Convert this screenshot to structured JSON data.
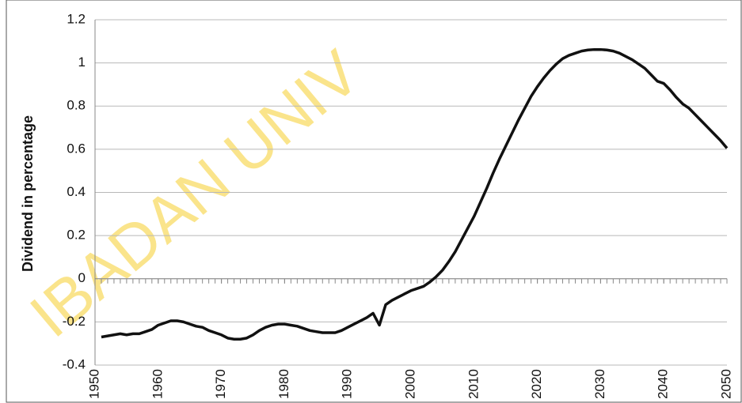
{
  "chart_data": {
    "type": "line",
    "ylabel": "Dividend in percentage",
    "watermark": "IBADAN UNIV",
    "x": [
      1951,
      1952,
      1953,
      1954,
      1955,
      1956,
      1957,
      1958,
      1959,
      1960,
      1961,
      1962,
      1963,
      1964,
      1965,
      1966,
      1967,
      1968,
      1969,
      1970,
      1971,
      1972,
      1973,
      1974,
      1975,
      1976,
      1977,
      1978,
      1979,
      1980,
      1981,
      1982,
      1983,
      1984,
      1985,
      1986,
      1987,
      1988,
      1989,
      1990,
      1991,
      1992,
      1993,
      1994,
      1995,
      1996,
      1997,
      1998,
      1999,
      2000,
      2001,
      2002,
      2003,
      2004,
      2005,
      2006,
      2007,
      2008,
      2009,
      2010,
      2011,
      2012,
      2013,
      2014,
      2015,
      2016,
      2017,
      2018,
      2019,
      2020,
      2021,
      2022,
      2023,
      2024,
      2025,
      2026,
      2027,
      2028,
      2029,
      2030,
      2031,
      2032,
      2033,
      2034,
      2035,
      2036,
      2037,
      2038,
      2039,
      2040,
      2041,
      2042,
      2043,
      2044,
      2045,
      2046,
      2047,
      2048,
      2049,
      2050
    ],
    "series": [
      {
        "color": "#111111",
        "values": [
          -0.27,
          -0.265,
          -0.26,
          -0.255,
          -0.26,
          -0.255,
          -0.255,
          -0.245,
          -0.235,
          -0.215,
          -0.205,
          -0.195,
          -0.195,
          -0.2,
          -0.21,
          -0.22,
          -0.225,
          -0.24,
          -0.25,
          -0.26,
          -0.275,
          -0.28,
          -0.28,
          -0.275,
          -0.26,
          -0.24,
          -0.225,
          -0.215,
          -0.21,
          -0.21,
          -0.215,
          -0.22,
          -0.23,
          -0.24,
          -0.245,
          -0.25,
          -0.25,
          -0.25,
          -0.24,
          -0.225,
          -0.21,
          -0.195,
          -0.18,
          -0.16,
          -0.215,
          -0.12,
          -0.1,
          -0.085,
          -0.07,
          -0.055,
          -0.045,
          -0.035,
          -0.015,
          0.01,
          0.04,
          0.08,
          0.125,
          0.18,
          0.235,
          0.29,
          0.355,
          0.42,
          0.49,
          0.555,
          0.615,
          0.675,
          0.735,
          0.79,
          0.845,
          0.89,
          0.93,
          0.965,
          0.995,
          1.02,
          1.035,
          1.045,
          1.055,
          1.06,
          1.062,
          1.062,
          1.06,
          1.055,
          1.045,
          1.03,
          1.015,
          0.995,
          0.975,
          0.945,
          0.915,
          0.905,
          0.875,
          0.84,
          0.81,
          0.79,
          0.76,
          0.73,
          0.7,
          0.67,
          0.64,
          0.605
        ]
      }
    ],
    "xlim": [
      1950,
      2050
    ],
    "xticks": [
      1950,
      1960,
      1970,
      1980,
      1990,
      2000,
      2010,
      2020,
      2030,
      2040,
      2050
    ],
    "ylim": [
      -0.4,
      1.2
    ],
    "yticks": [
      -0.4,
      -0.2,
      0,
      0.2,
      0.4,
      0.6,
      0.8,
      1,
      1.2
    ],
    "grid": true
  }
}
